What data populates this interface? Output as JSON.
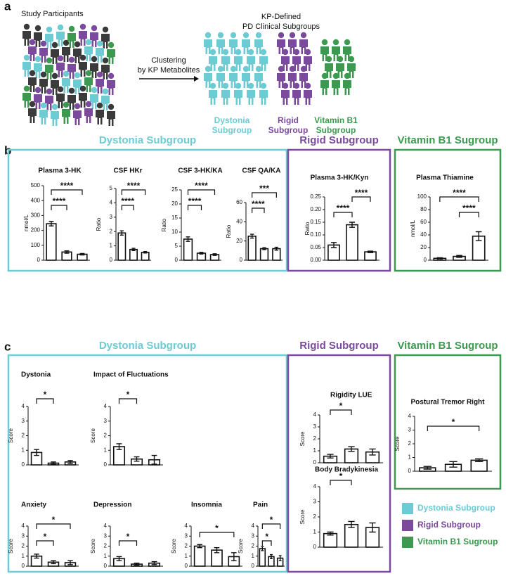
{
  "panel_a": {
    "letter": "a",
    "left_title": "Study Participants",
    "right_title_1": "KP-Defined",
    "right_title_2": "PD Clinical Subgroups",
    "arrow_1": "Clustering",
    "arrow_2": "by KP Metabolites",
    "groups": [
      [
        "Dystonia",
        "Subgroup"
      ],
      [
        "Rigid",
        "Subgroup"
      ],
      [
        "Vitamin B1",
        "Subgroup"
      ]
    ]
  },
  "panel_b": {
    "letter": "b",
    "headers": [
      "Dystonia Subgroup",
      "Rigid Subgroup",
      "Vitamin B1 Sugroup"
    ]
  },
  "panel_c": {
    "letter": "c",
    "headers": [
      "Dystonia Subgroup",
      "Rigid Subgroup",
      "Vitamin B1 Sugroup"
    ]
  },
  "legend": [
    {
      "name": "Dystonia Subgroup",
      "color": "#6ccbd3"
    },
    {
      "name": "Rigid Subgroup",
      "color": "#7b4a9c"
    },
    {
      "name": "Vitamin B1 Sugroup",
      "color": "#3c9a50"
    }
  ],
  "chart_data": [
    {
      "type": "bar",
      "title": "Plasma 3-HK",
      "ylabel": "nmol/L",
      "values": [
        245,
        55,
        40
      ],
      "errors": [
        15,
        8,
        5
      ],
      "ylim": [
        0,
        500
      ],
      "yticks": [
        0,
        100,
        200,
        300,
        400,
        500
      ],
      "comparisons": [
        {
          "groups": [
            0,
            1
          ],
          "label": "****"
        },
        {
          "groups": [
            0,
            2
          ],
          "label": "****"
        }
      ]
    },
    {
      "type": "bar",
      "title": "CSF HKr",
      "ylabel": "Ratio",
      "values": [
        1.9,
        0.75,
        0.55
      ],
      "errors": [
        0.15,
        0.08,
        0.05
      ],
      "ylim": [
        0,
        5
      ],
      "yticks": [
        0,
        1,
        2,
        3,
        4,
        5
      ],
      "comparisons": [
        {
          "groups": [
            0,
            1
          ],
          "label": "****"
        },
        {
          "groups": [
            0,
            2
          ],
          "label": "****"
        }
      ]
    },
    {
      "type": "bar",
      "title": "CSF 3-HK/KA",
      "ylabel": "Ratio",
      "values": [
        7.5,
        2.5,
        2
      ],
      "errors": [
        0.8,
        0.3,
        0.3
      ],
      "ylim": [
        0,
        25
      ],
      "yticks": [
        0,
        5,
        10,
        15,
        20,
        25
      ],
      "comparisons": [
        {
          "groups": [
            0,
            1
          ],
          "label": "****"
        },
        {
          "groups": [
            0,
            2
          ],
          "label": "****"
        }
      ]
    },
    {
      "type": "bar",
      "title": "CSF QA/KA",
      "ylabel": "Ratio",
      "values": [
        25,
        12,
        12
      ],
      "errors": [
        2,
        1,
        1.5
      ],
      "ylim": [
        0,
        60
      ],
      "yticks": [
        0,
        20,
        40,
        60
      ],
      "comparisons": [
        {
          "groups": [
            0,
            1
          ],
          "label": "****"
        },
        {
          "groups": [
            0,
            2
          ],
          "label": "***"
        }
      ]
    },
    {
      "type": "bar",
      "title": "Plasma 3-HK/Kyn",
      "ylabel": "Ratio",
      "values": [
        0.06,
        0.14,
        0.033
      ],
      "errors": [
        0.01,
        0.01,
        0.003
      ],
      "ylim": [
        0,
        0.25
      ],
      "yticks": [
        {
          "value": 0,
          "label": "0.00"
        },
        {
          "value": 0.05,
          "label": "0.05"
        },
        {
          "value": 0.1,
          "label": "0.10"
        },
        {
          "value": 0.15,
          "label": "0.15"
        },
        {
          "value": 0.2,
          "label": "0.20"
        },
        {
          "value": 0.25,
          "label": "0.25"
        }
      ],
      "comparisons": [
        {
          "groups": [
            0,
            1
          ],
          "label": "****"
        },
        {
          "groups": [
            1,
            2
          ],
          "label": "****"
        }
      ]
    },
    {
      "type": "bar",
      "title": "Plasma Thiamine",
      "ylabel": "nmol/L",
      "values": [
        3,
        6,
        38
      ],
      "errors": [
        1,
        1.5,
        7
      ],
      "ylim": [
        0,
        100
      ],
      "yticks": [
        0,
        20,
        40,
        60,
        80,
        100
      ],
      "comparisons": [
        {
          "groups": [
            1,
            2
          ],
          "label": "****"
        },
        {
          "groups": [
            0,
            2
          ],
          "label": "****"
        }
      ]
    },
    {
      "type": "bar",
      "title": "Dystonia",
      "ylabel": "Score",
      "values": [
        0.85,
        0.12,
        0.2
      ],
      "errors": [
        0.2,
        0.08,
        0.1
      ],
      "ylim": [
        0,
        4
      ],
      "yticks": [
        0,
        1,
        2,
        3,
        4
      ],
      "comparisons": [
        {
          "groups": [
            0,
            1
          ],
          "label": "*"
        }
      ]
    },
    {
      "type": "bar",
      "title": "Impact of Fluctuations",
      "ylabel": "Score",
      "values": [
        1.25,
        0.4,
        0.35
      ],
      "errors": [
        0.2,
        0.15,
        0.3
      ],
      "ylim": [
        0,
        4
      ],
      "yticks": [
        0,
        1,
        2,
        3,
        4
      ],
      "comparisons": [
        {
          "groups": [
            0,
            1
          ],
          "label": "*"
        }
      ]
    },
    {
      "type": "bar",
      "title": "Anxiety",
      "ylabel": "Score",
      "values": [
        1.0,
        0.4,
        0.35
      ],
      "errors": [
        0.2,
        0.15,
        0.2
      ],
      "ylim": [
        0,
        4
      ],
      "yticks": [
        0,
        1,
        2,
        3,
        4
      ],
      "comparisons": [
        {
          "groups": [
            0,
            1
          ],
          "label": "*"
        },
        {
          "groups": [
            0,
            2
          ],
          "label": "*"
        }
      ]
    },
    {
      "type": "bar",
      "title": "Depression",
      "ylabel": "Score",
      "values": [
        0.75,
        0.2,
        0.3
      ],
      "errors": [
        0.2,
        0.1,
        0.15
      ],
      "ylim": [
        0,
        4
      ],
      "yticks": [
        0,
        1,
        2,
        3,
        4
      ],
      "comparisons": [
        {
          "groups": [
            0,
            1
          ],
          "label": "*"
        }
      ]
    },
    {
      "type": "bar",
      "title": "Insomnia",
      "ylabel": "Score",
      "values": [
        2.0,
        1.6,
        0.95
      ],
      "errors": [
        0.15,
        0.25,
        0.4
      ],
      "ylim": [
        0,
        4
      ],
      "yticks": [
        0,
        1,
        2,
        3,
        4
      ],
      "comparisons": [
        {
          "groups": [
            0,
            2
          ],
          "label": "*"
        }
      ]
    },
    {
      "type": "bar",
      "title": "Pain",
      "ylabel": "Score",
      "values": [
        1.75,
        0.95,
        0.8
      ],
      "errors": [
        0.2,
        0.2,
        0.25
      ],
      "ylim": [
        0,
        4
      ],
      "yticks": [
        0,
        1,
        2,
        3,
        4
      ],
      "comparisons": [
        {
          "groups": [
            0,
            1
          ],
          "label": "*"
        },
        {
          "groups": [
            0,
            2
          ],
          "label": "*"
        }
      ]
    },
    {
      "type": "bar",
      "title": "Rigidity LUE",
      "ylabel": "Score",
      "values": [
        0.55,
        1.15,
        0.9
      ],
      "errors": [
        0.15,
        0.2,
        0.25
      ],
      "ylim": [
        0,
        4
      ],
      "yticks": [
        0,
        1,
        2,
        3,
        4
      ],
      "comparisons": [
        {
          "groups": [
            0,
            1
          ],
          "label": "*"
        }
      ]
    },
    {
      "type": "bar",
      "title": "Body Bradykinesia",
      "ylabel": "Score",
      "values": [
        0.9,
        1.5,
        1.3
      ],
      "errors": [
        0.1,
        0.2,
        0.3
      ],
      "ylim": [
        0,
        4
      ],
      "yticks": [
        0,
        1,
        2,
        3,
        4
      ],
      "comparisons": [
        {
          "groups": [
            0,
            1
          ],
          "label": "*"
        }
      ]
    },
    {
      "type": "bar",
      "title": "Postural Tremor Right",
      "ylabel": "Score",
      "values": [
        0.25,
        0.5,
        0.8
      ],
      "errors": [
        0.1,
        0.2,
        0.1
      ],
      "ylim": [
        0,
        4
      ],
      "yticks": [
        0,
        1,
        2,
        3,
        4
      ],
      "comparisons": [
        {
          "groups": [
            0,
            2
          ],
          "label": "*"
        }
      ]
    }
  ]
}
